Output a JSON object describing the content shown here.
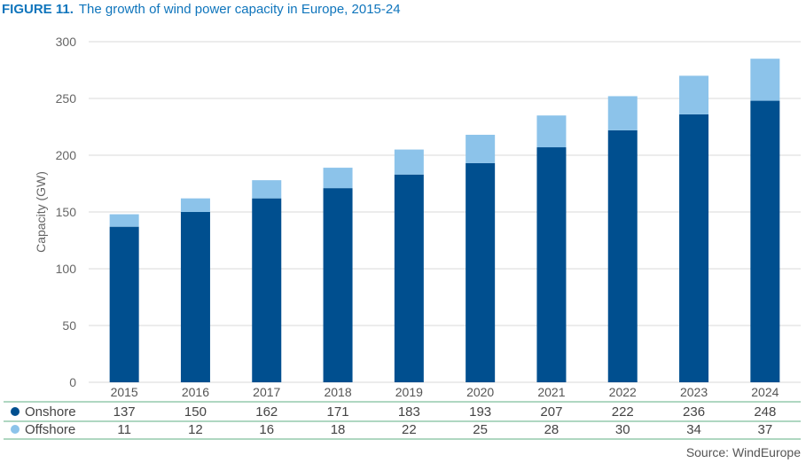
{
  "header": {
    "figure_label": "FIGURE 11.",
    "title": "The growth of wind power capacity in Europe, 2015-24"
  },
  "source": "Source: WindEurope",
  "colors": {
    "onshore": "#004f8f",
    "offshore": "#8cc3ea",
    "grid": "#d9d9d9",
    "table_line": "#7fbf9c",
    "axis_text": "#666666",
    "title": "#0f75bc"
  },
  "chart_data": {
    "type": "bar",
    "stacked": true,
    "title": "The growth of wind power capacity in Europe, 2015-24",
    "xlabel": "",
    "ylabel": "Capacity (GW)",
    "ylim": [
      0,
      300
    ],
    "yticks": [
      0,
      50,
      100,
      150,
      200,
      250,
      300
    ],
    "grid": true,
    "legend": "data-table-left",
    "categories": [
      "2015",
      "2016",
      "2017",
      "2018",
      "2019",
      "2020",
      "2021",
      "2022",
      "2023",
      "2024"
    ],
    "series": [
      {
        "name": "Onshore",
        "color": "#004f8f",
        "values": [
          137,
          150,
          162,
          171,
          183,
          193,
          207,
          222,
          236,
          248
        ]
      },
      {
        "name": "Offshore",
        "color": "#8cc3ea",
        "values": [
          11,
          12,
          16,
          18,
          22,
          25,
          28,
          30,
          34,
          37
        ]
      }
    ]
  }
}
